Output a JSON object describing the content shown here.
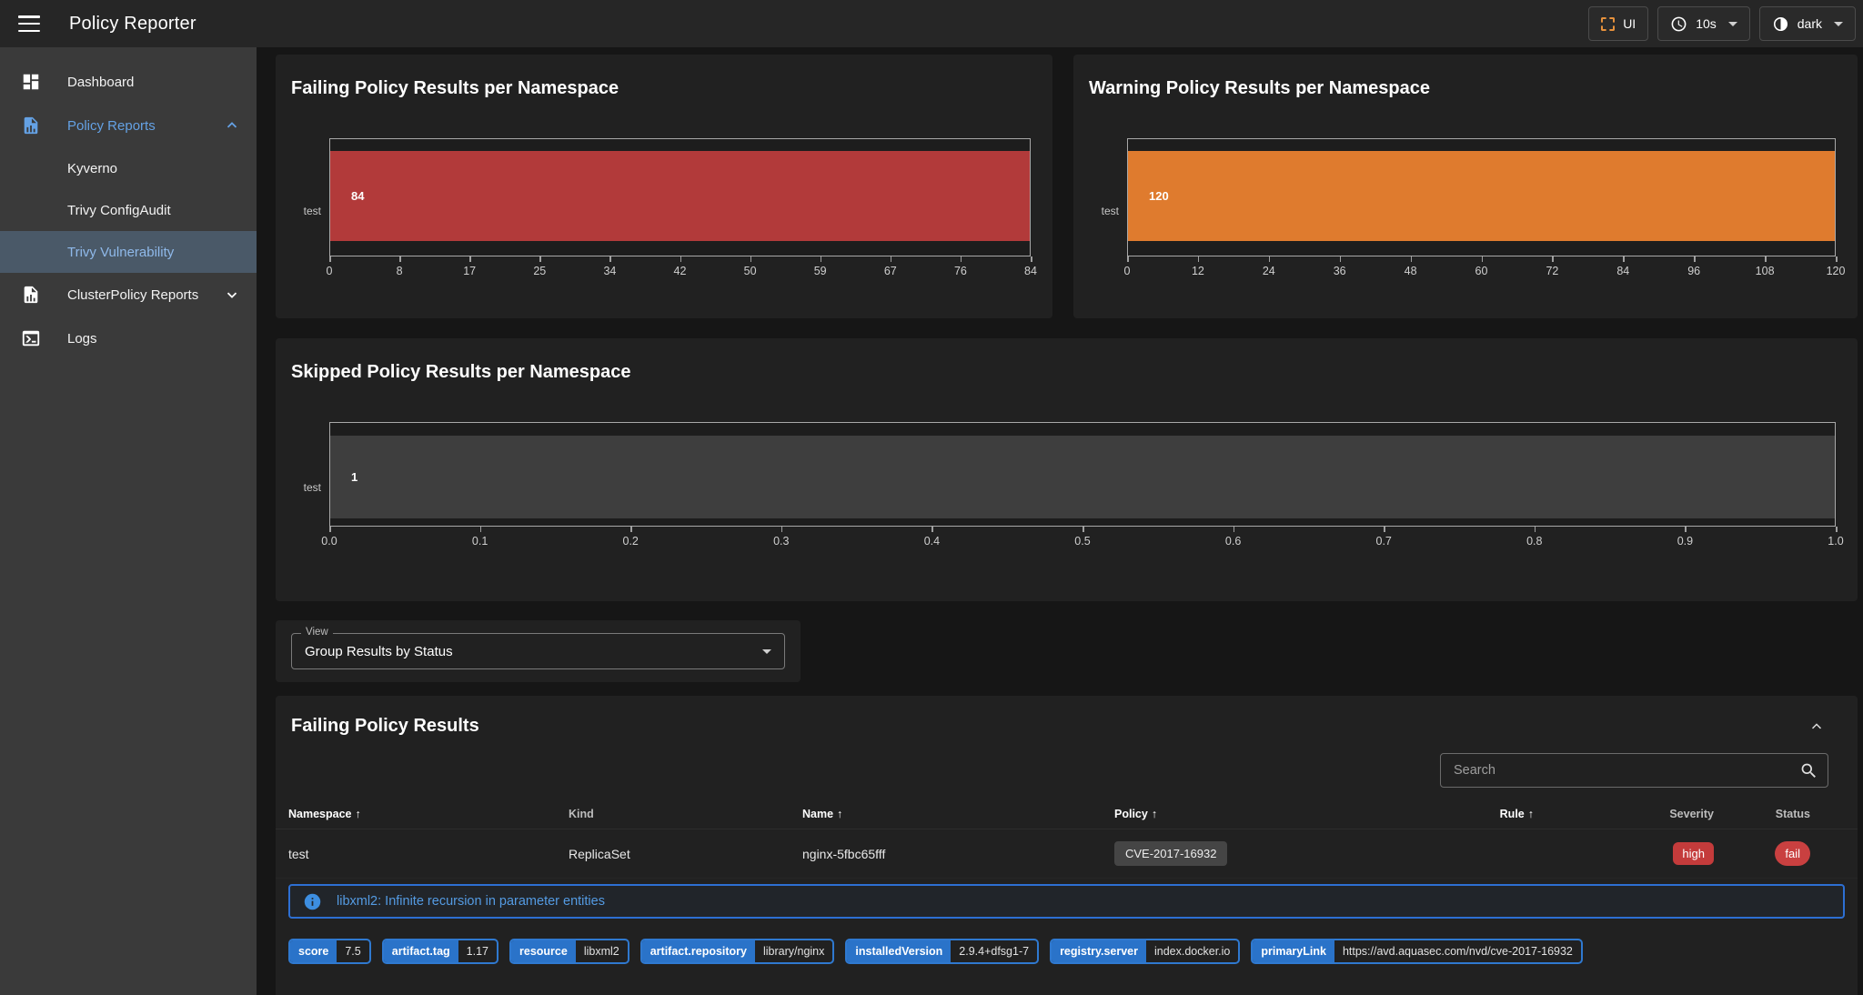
{
  "app": {
    "title": "Policy Reporter"
  },
  "topbar": {
    "ui_button_label": "UI",
    "refresh_interval_value": "10s",
    "theme_value": "dark"
  },
  "sidebar": {
    "items": [
      {
        "label": "Dashboard"
      },
      {
        "label": "Policy Reports"
      },
      {
        "label": "Kyverno"
      },
      {
        "label": "Trivy ConfigAudit"
      },
      {
        "label": "Trivy Vulnerability"
      },
      {
        "label": "ClusterPolicy Reports"
      },
      {
        "label": "Logs"
      }
    ]
  },
  "view": {
    "label": "View",
    "value": "Group Results by Status"
  },
  "results": {
    "title": "Failing Policy Results",
    "search_placeholder": "Search",
    "columns": [
      {
        "label": "Namespace",
        "sorted": true
      },
      {
        "label": "Kind",
        "sorted": false
      },
      {
        "label": "Name",
        "sorted": true
      },
      {
        "label": "Policy",
        "sorted": true
      },
      {
        "label": "Rule",
        "sorted": true
      },
      {
        "label": "Severity",
        "sorted": false
      },
      {
        "label": "Status",
        "sorted": false
      }
    ],
    "rows": [
      {
        "namespace": "test",
        "kind": "ReplicaSet",
        "name": "nginx-5fbc65fff",
        "policy": "CVE-2017-16932",
        "rule": "",
        "severity": "high",
        "status": "fail"
      }
    ],
    "detail": {
      "message": "libxml2: Infinite recursion in parameter entities",
      "properties": [
        {
          "label": "score",
          "value": "7.5"
        },
        {
          "label": "artifact.tag",
          "value": "1.17"
        },
        {
          "label": "resource",
          "value": "libxml2"
        },
        {
          "label": "artifact.repository",
          "value": "library/nginx"
        },
        {
          "label": "installedVersion",
          "value": "2.9.4+dfsg1-7"
        },
        {
          "label": "registry.server",
          "value": "index.docker.io"
        },
        {
          "label": "primaryLink",
          "value": "https://avd.aquasec.com/nvd/cve-2017-16932"
        }
      ]
    }
  },
  "colors": {
    "accent_blue": "#64a1e4",
    "chip_blue": "#2a73c9",
    "fail_red": "#b23a3a",
    "warn_orange": "#df7b2e",
    "skip_gray": "#3e3e3e",
    "status_red": "#c94040"
  },
  "chart_data": [
    {
      "type": "bar",
      "orientation": "horizontal",
      "title": "Failing Policy Results per Namespace",
      "categories": [
        "test"
      ],
      "values": [
        84
      ],
      "xlim": [
        0,
        84
      ],
      "tick_labels": [
        "0",
        "8",
        "17",
        "25",
        "34",
        "42",
        "50",
        "59",
        "67",
        "76",
        "84"
      ],
      "color": "#b23a3a",
      "grid": false,
      "legend": "none"
    },
    {
      "type": "bar",
      "orientation": "horizontal",
      "title": "Warning Policy Results per Namespace",
      "categories": [
        "test"
      ],
      "values": [
        120
      ],
      "xlim": [
        0,
        120
      ],
      "tick_labels": [
        "0",
        "12",
        "24",
        "36",
        "48",
        "60",
        "72",
        "84",
        "96",
        "108",
        "120"
      ],
      "color": "#df7b2e",
      "grid": false,
      "legend": "none"
    },
    {
      "type": "bar",
      "orientation": "horizontal",
      "title": "Skipped Policy Results per Namespace",
      "categories": [
        "test"
      ],
      "values": [
        1
      ],
      "xlim": [
        0,
        1
      ],
      "tick_labels": [
        "0.0",
        "0.1",
        "0.2",
        "0.3",
        "0.4",
        "0.5",
        "0.6",
        "0.7",
        "0.8",
        "0.9",
        "1.0"
      ],
      "color": "#3e3e3e",
      "grid": false,
      "legend": "none"
    }
  ]
}
